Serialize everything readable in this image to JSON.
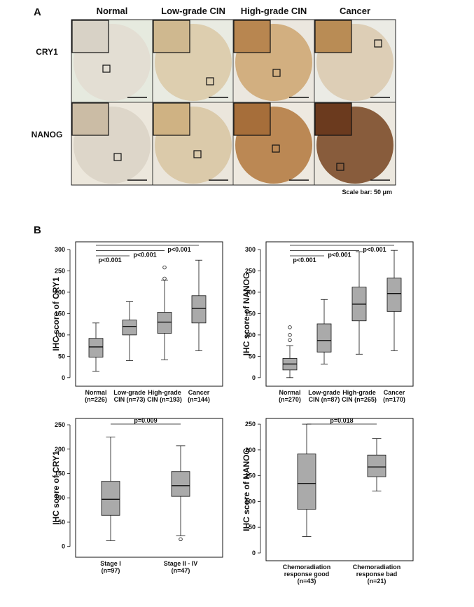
{
  "panel_a": {
    "label": "A",
    "columns": [
      "Normal",
      "Low-grade CIN",
      "High-grade CIN",
      "Cancer"
    ],
    "rows": [
      "CRY1",
      "NANOG"
    ],
    "scale_note": "Scale bar: 50 μm"
  },
  "panel_b_label": "B",
  "chart_data": [
    {
      "type": "box",
      "ylabel": "IHC score of CRY1",
      "categories": [
        "Normal\n(n=226)",
        "Low-grade\nCIN (n=73)",
        "High-grade\nCIN (n=193)",
        "Cancer\n(n=144)"
      ],
      "boxes": [
        {
          "min": 15,
          "q1": 48,
          "median": 72,
          "q3": 92,
          "max": 128,
          "outliers": []
        },
        {
          "min": 40,
          "q1": 100,
          "median": 120,
          "q3": 135,
          "max": 178,
          "outliers": []
        },
        {
          "min": 42,
          "q1": 104,
          "median": 130,
          "q3": 153,
          "max": 228,
          "outliers": [
            232,
            258
          ]
        },
        {
          "min": 63,
          "q1": 128,
          "median": 162,
          "q3": 192,
          "max": 275,
          "outliers": []
        }
      ],
      "color": "#aaaaaa",
      "ylim": [
        -20,
        318
      ],
      "yticks": [
        0,
        50,
        100,
        150,
        200,
        250,
        300
      ],
      "annotations": [
        "p<0.001",
        "p<0.001",
        "p<0.001"
      ]
    },
    {
      "type": "box",
      "ylabel": "IHC score of NANOG",
      "categories": [
        "Normal\n(n=270)",
        "Low-grade\nCIN (n=87)",
        "High-grade\nCIN (n=265)",
        "Cancer\n(n=170)"
      ],
      "boxes": [
        {
          "min": 0,
          "q1": 18,
          "median": 32,
          "q3": 45,
          "max": 75,
          "outliers": [
            88,
            100,
            118
          ]
        },
        {
          "min": 32,
          "q1": 60,
          "median": 87,
          "q3": 126,
          "max": 183,
          "outliers": []
        },
        {
          "min": 55,
          "q1": 133,
          "median": 172,
          "q3": 212,
          "max": 295,
          "outliers": []
        },
        {
          "min": 63,
          "q1": 155,
          "median": 197,
          "q3": 233,
          "max": 298,
          "outliers": []
        }
      ],
      "color": "#aaaaaa",
      "ylim": [
        -20,
        318
      ],
      "yticks": [
        0,
        50,
        100,
        150,
        200,
        250,
        300
      ],
      "annotations": [
        "p<0.001",
        "p<0.001",
        "p<0.001"
      ]
    },
    {
      "type": "box",
      "ylabel": "IHC score of CRY1",
      "categories": [
        "Stage I\n(n=97)",
        "Stage II - IV\n(n=47)"
      ],
      "boxes": [
        {
          "min": 12,
          "q1": 64,
          "median": 97,
          "q3": 134,
          "max": 225,
          "outliers": []
        },
        {
          "min": 22,
          "q1": 103,
          "median": 125,
          "q3": 154,
          "max": 207,
          "outliers": [
            15
          ]
        }
      ],
      "color": "#aaaaaa",
      "ylim": [
        -22,
        263
      ],
      "yticks": [
        0,
        50,
        100,
        150,
        200,
        250
      ],
      "annotations": [
        "p=0.009"
      ]
    },
    {
      "type": "box",
      "ylabel": "IHC score of NANOG",
      "categories": [
        "Chemoradiation\nresponse good\n(n=43)",
        "Chemoradiation\nresponse bad\n(n=21)"
      ],
      "boxes": [
        {
          "min": 32,
          "q1": 85,
          "median": 135,
          "q3": 192,
          "max": 250,
          "outliers": []
        },
        {
          "min": 120,
          "q1": 148,
          "median": 167,
          "q3": 190,
          "max": 222,
          "outliers": []
        }
      ],
      "color": "#aaaaaa",
      "ylim": [
        -15,
        261
      ],
      "yticks": [
        0,
        50,
        100,
        150,
        200,
        250
      ],
      "annotations": [
        "p=0.018"
      ]
    }
  ]
}
